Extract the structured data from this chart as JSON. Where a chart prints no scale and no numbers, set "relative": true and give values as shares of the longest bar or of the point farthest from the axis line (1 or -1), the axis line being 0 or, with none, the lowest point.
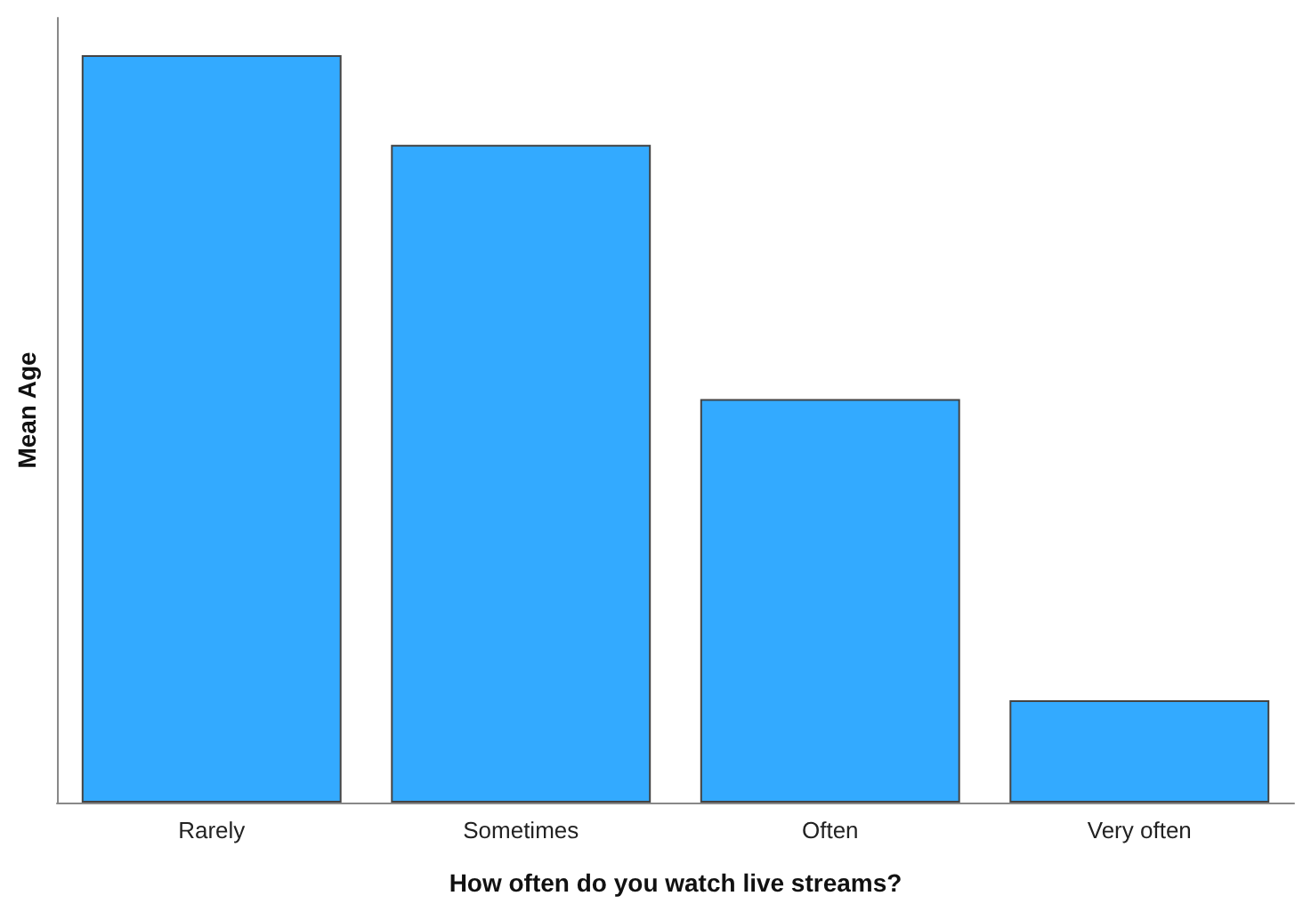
{
  "chart_data": {
    "type": "bar",
    "xlabel": "How often do you watch live streams?",
    "ylabel": "Mean Age",
    "categories": [
      "Rarely",
      "Sometimes",
      "Often",
      "Very often"
    ],
    "values": [
      1,
      0.88,
      0.54,
      0.137
    ],
    "color": "#33aaff",
    "relative": true
  }
}
